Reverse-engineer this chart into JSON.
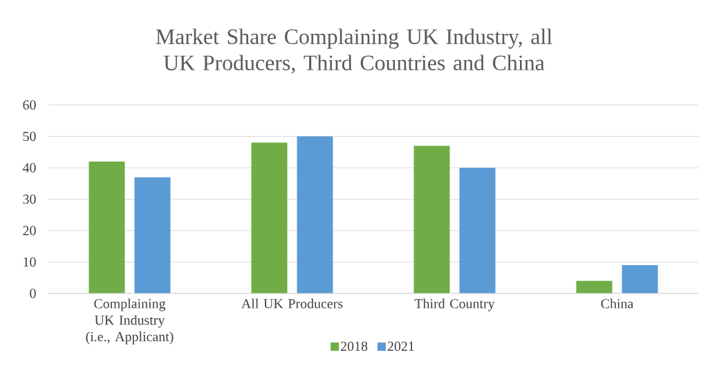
{
  "chart_data": {
    "type": "bar",
    "title": "Market Share Complaining UK Industry, all UK Producers, Third Countries and China",
    "categories": [
      "Complaining UK Industry (i.e., Applicant)",
      "All UK Producers",
      "Third Country",
      "China"
    ],
    "series": [
      {
        "name": "2018",
        "color": "#70ad47",
        "values": [
          42,
          48,
          47,
          4
        ]
      },
      {
        "name": "2021",
        "color": "#5b9bd5",
        "values": [
          37,
          50,
          40,
          9
        ]
      }
    ],
    "ylim": [
      0,
      60
    ],
    "yticks": [
      0,
      10,
      20,
      30,
      40,
      50,
      60
    ],
    "grid": "y",
    "legend": "bottom"
  }
}
